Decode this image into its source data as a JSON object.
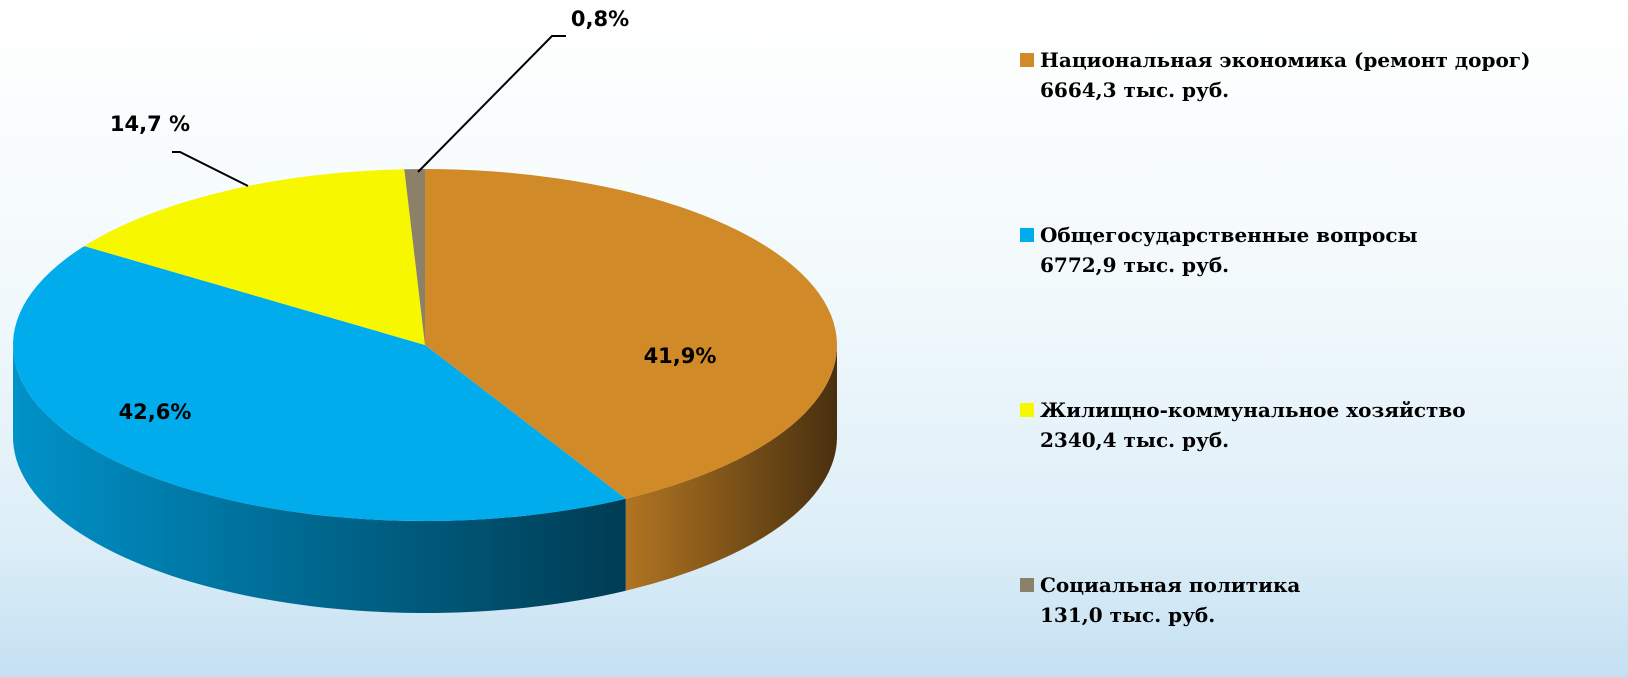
{
  "chart_data": {
    "type": "pie",
    "categories": [
      "Национальная экономика (ремонт дорог)",
      "Общегосударственные вопросы",
      "Жилищно-коммунальное хозяйство",
      "Социальная политика"
    ],
    "legend_amounts": [
      "6664,3 тыс. руб.",
      "6772,9 тыс. руб.",
      "2340,4 тыс. руб.",
      "131,0 тыс. руб."
    ],
    "values": [
      41.9,
      42.6,
      14.7,
      0.8
    ],
    "value_labels": [
      "41,9%",
      "42,6%",
      "14,7 %",
      "0,8%"
    ],
    "colors": [
      "#d08a28",
      "#00acec",
      "#f7f700",
      "#8c8068"
    ]
  }
}
